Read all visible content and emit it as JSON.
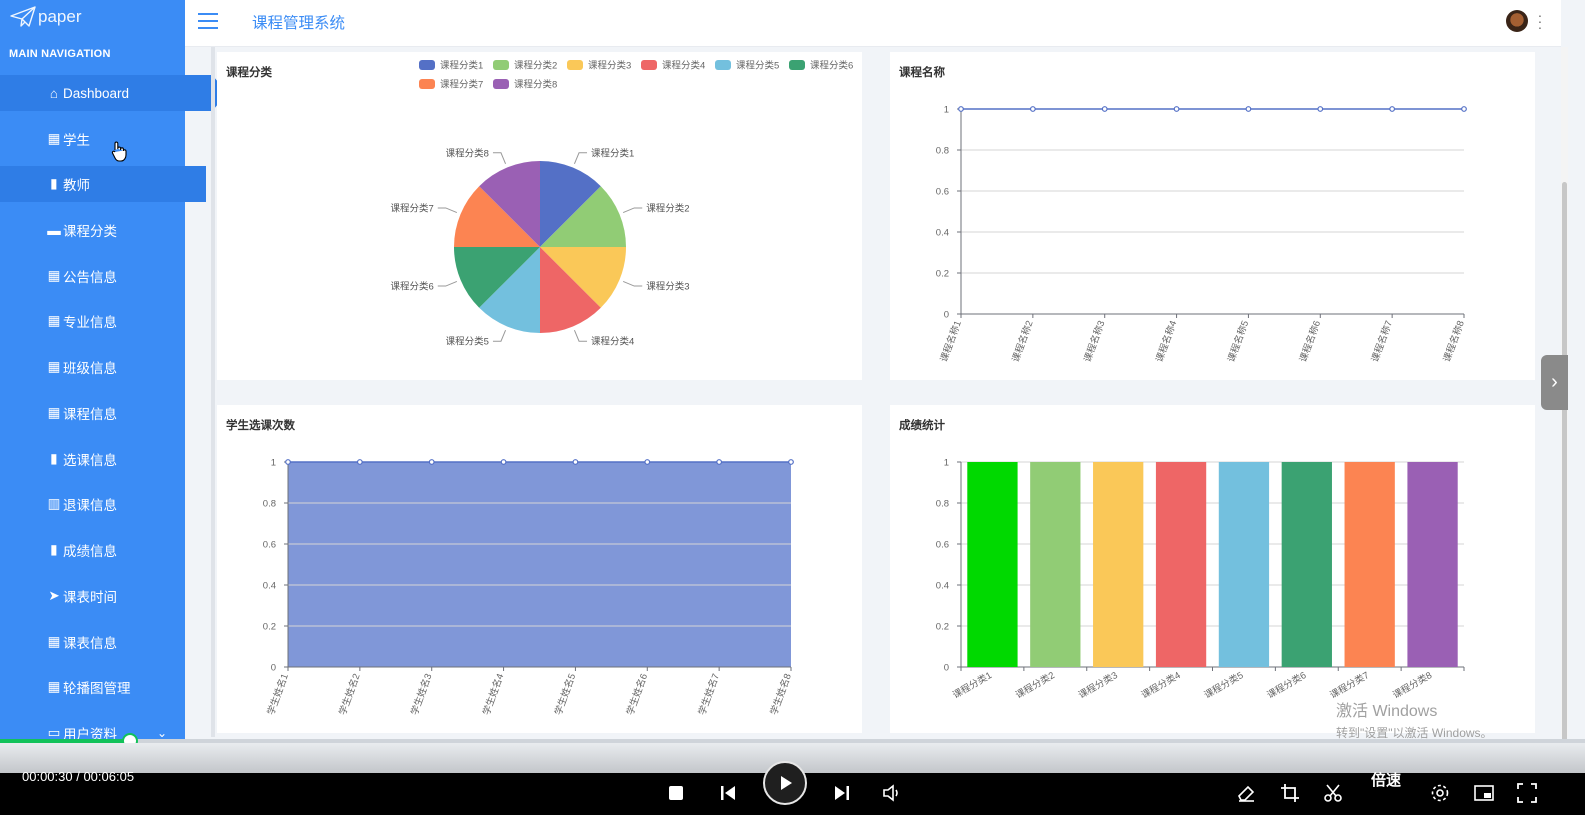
{
  "sidebar": {
    "logo_text": "paper",
    "heading": "MAIN NAVIGATION",
    "items": [
      {
        "label": "Dashboard",
        "icon": "home-icon"
      },
      {
        "label": "学生",
        "icon": "grid-icon"
      },
      {
        "label": "教师",
        "icon": "clipboard-icon"
      },
      {
        "label": "课程分类",
        "icon": "briefcase-icon"
      },
      {
        "label": "公告信息",
        "icon": "grid-icon"
      },
      {
        "label": "专业信息",
        "icon": "table-icon"
      },
      {
        "label": "班级信息",
        "icon": "grid-icon"
      },
      {
        "label": "课程信息",
        "icon": "grid-icon"
      },
      {
        "label": "选课信息",
        "icon": "clipboard-icon"
      },
      {
        "label": "退课信息",
        "icon": "bar-chart-icon"
      },
      {
        "label": "成绩信息",
        "icon": "clipboard-icon"
      },
      {
        "label": "课表时间",
        "icon": "send-icon"
      },
      {
        "label": "课表信息",
        "icon": "grid-icon"
      },
      {
        "label": "轮播图管理",
        "icon": "grid-icon"
      },
      {
        "label": "用户资料",
        "icon": "calendar-icon"
      }
    ]
  },
  "header": {
    "title": "课程管理系统"
  },
  "colors": {
    "accent": "#3b8cf5",
    "palette": [
      "#5470c6",
      "#91cc75",
      "#fac858",
      "#ee6666",
      "#73c0de",
      "#3ba272",
      "#fc8452",
      "#9a60b4"
    ],
    "area_fill": "#8097d8",
    "first_bar": "#00d900"
  },
  "chart_data": [
    {
      "type": "pie",
      "title": "课程分类",
      "categories": [
        "课程分类1",
        "课程分类2",
        "课程分类3",
        "课程分类4",
        "课程分类5",
        "课程分类6",
        "课程分类7",
        "课程分类8"
      ],
      "values": [
        1,
        1,
        1,
        1,
        1,
        1,
        1,
        1
      ],
      "legend": "top"
    },
    {
      "type": "line",
      "title": "课程名称",
      "categories": [
        "课程名称1",
        "课程名称2",
        "课程名称3",
        "课程名称4",
        "课程名称5",
        "课程名称6",
        "课程名称7",
        "课程名称8"
      ],
      "values": [
        1,
        1,
        1,
        1,
        1,
        1,
        1,
        1
      ],
      "ylim": [
        0,
        1
      ],
      "yticks": [
        "0",
        "0.2",
        "0.4",
        "0.6",
        "0.8",
        "1"
      ],
      "grid": true
    },
    {
      "type": "area",
      "title": "学生选课次数",
      "categories": [
        "学生姓名1",
        "学生姓名2",
        "学生姓名3",
        "学生姓名4",
        "学生姓名5",
        "学生姓名6",
        "学生姓名7",
        "学生姓名8"
      ],
      "values": [
        1,
        1,
        1,
        1,
        1,
        1,
        1,
        1
      ],
      "ylim": [
        0,
        1
      ],
      "yticks": [
        "0",
        "0.2",
        "0.4",
        "0.6",
        "0.8",
        "1"
      ],
      "grid": true
    },
    {
      "type": "bar",
      "title": "成绩统计",
      "categories": [
        "课程分类1",
        "课程分类2",
        "课程分类3",
        "课程分类4",
        "课程分类5",
        "课程分类6",
        "课程分类7",
        "课程分类8"
      ],
      "values": [
        1,
        1,
        1,
        1,
        1,
        1,
        1,
        1
      ],
      "ylim": [
        0,
        1
      ],
      "yticks": [
        "0",
        "0.2",
        "0.4",
        "0.6",
        "0.8",
        "1"
      ],
      "grid": true
    }
  ],
  "watermark": {
    "line1": "激活 Windows",
    "line2": "转到\"设置\"以激活 Windows。"
  },
  "player": {
    "timecode": "00:00:30 / 00:06:05",
    "progress": 0.082,
    "speed_label": "倍速"
  }
}
